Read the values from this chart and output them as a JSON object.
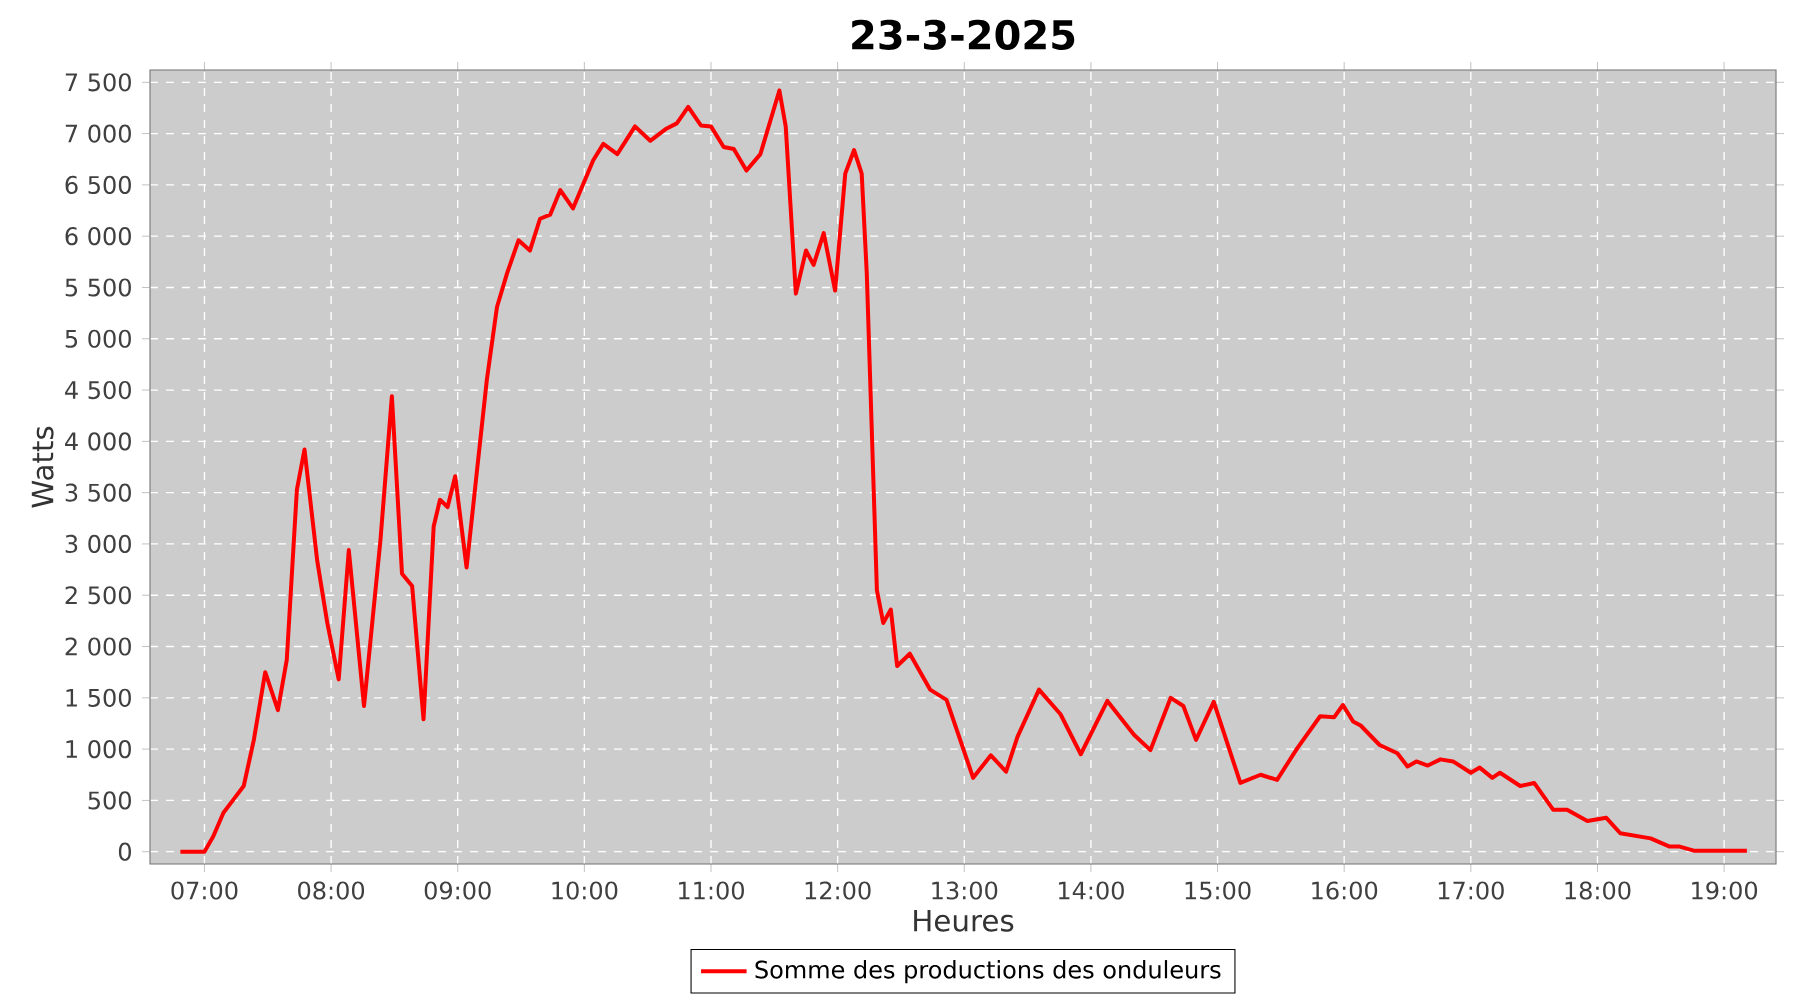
{
  "chart_data": {
    "type": "line",
    "title": "23-3-2025",
    "xlabel": "Heures",
    "ylabel": "Watts",
    "x": [
      6.81,
      7.0,
      7.07,
      7.15,
      7.23,
      7.31,
      7.39,
      7.48,
      7.58,
      7.65,
      7.73,
      7.79,
      7.89,
      7.97,
      8.06,
      8.14,
      8.26,
      8.39,
      8.48,
      8.56,
      8.64,
      8.73,
      8.81,
      8.86,
      8.92,
      8.98,
      9.07,
      9.15,
      9.23,
      9.31,
      9.39,
      9.48,
      9.57,
      9.65,
      9.73,
      9.81,
      9.91,
      10.07,
      10.15,
      10.26,
      10.4,
      10.52,
      10.65,
      10.73,
      10.82,
      10.92,
      11.0,
      11.1,
      11.18,
      11.28,
      11.39,
      11.54,
      11.59,
      11.67,
      11.75,
      11.81,
      11.89,
      11.98,
      12.06,
      12.13,
      12.19,
      12.23,
      12.31,
      12.36,
      12.42,
      12.47,
      12.57,
      12.73,
      12.86,
      13.07,
      13.21,
      13.33,
      13.42,
      13.59,
      13.76,
      13.92,
      14.13,
      14.34,
      14.47,
      14.63,
      14.73,
      14.83,
      14.97,
      15.18,
      15.34,
      15.47,
      15.63,
      15.81,
      15.92,
      15.99,
      16.07,
      16.13,
      16.28,
      16.42,
      16.5,
      16.57,
      16.66,
      16.76,
      16.86,
      17.0,
      17.07,
      17.17,
      17.23,
      17.39,
      17.5,
      17.65,
      17.76,
      17.92,
      18.07,
      18.18,
      18.42,
      18.57,
      18.65,
      18.76,
      19.18
    ],
    "series": [
      {
        "name": "Somme des productions des onduleurs",
        "color": "#ff0000",
        "values": [
          0,
          0,
          150,
          380,
          510,
          640,
          1090,
          1750,
          1380,
          1870,
          3530,
          3920,
          2840,
          2230,
          1680,
          2940,
          1420,
          3040,
          4440,
          2710,
          2590,
          1290,
          3170,
          3430,
          3360,
          3660,
          2770,
          3690,
          4600,
          5310,
          5640,
          5960,
          5860,
          6170,
          6210,
          6450,
          6270,
          6740,
          6900,
          6800,
          7070,
          6930,
          7050,
          7100,
          7260,
          7080,
          7070,
          6870,
          6850,
          6640,
          6800,
          7420,
          7070,
          5440,
          5860,
          5720,
          6030,
          5470,
          6610,
          6840,
          6610,
          5640,
          2550,
          2230,
          2360,
          1810,
          1930,
          1580,
          1480,
          720,
          940,
          780,
          1120,
          1580,
          1340,
          950,
          1470,
          1140,
          990,
          1500,
          1420,
          1090,
          1460,
          670,
          750,
          700,
          1010,
          1320,
          1310,
          1430,
          1270,
          1230,
          1040,
          960,
          830,
          880,
          840,
          900,
          880,
          770,
          820,
          720,
          770,
          640,
          670,
          410,
          410,
          300,
          330,
          180,
          130,
          50,
          50,
          10,
          10
        ]
      }
    ],
    "xlim": [
      6.57,
      19.41
    ],
    "ylim": [
      -120,
      7620
    ],
    "xticks": [
      {
        "value": 7,
        "label": "07:00"
      },
      {
        "value": 8,
        "label": "08:00"
      },
      {
        "value": 9,
        "label": "09:00"
      },
      {
        "value": 10,
        "label": "10:00"
      },
      {
        "value": 11,
        "label": "11:00"
      },
      {
        "value": 12,
        "label": "12:00"
      },
      {
        "value": 13,
        "label": "13:00"
      },
      {
        "value": 14,
        "label": "14:00"
      },
      {
        "value": 15,
        "label": "15:00"
      },
      {
        "value": 16,
        "label": "16:00"
      },
      {
        "value": 17,
        "label": "17:00"
      },
      {
        "value": 18,
        "label": "18:00"
      },
      {
        "value": 19,
        "label": "19:00"
      }
    ],
    "yticks": [
      0,
      500,
      {
        "value": 1000,
        "label": "1 000"
      },
      {
        "value": 1500,
        "label": "1 500"
      },
      {
        "value": 2000,
        "label": "2 000"
      },
      {
        "value": 2500,
        "label": "2 500"
      },
      {
        "value": 3000,
        "label": "3 000"
      },
      {
        "value": 3500,
        "label": "3 500"
      },
      {
        "value": 4000,
        "label": "4 000"
      },
      {
        "value": 4500,
        "label": "4 500"
      },
      {
        "value": 5000,
        "label": "5 000"
      },
      {
        "value": 5500,
        "label": "5 500"
      },
      {
        "value": 6000,
        "label": "6 000"
      },
      {
        "value": 6500,
        "label": "6 500"
      },
      {
        "value": 7000,
        "label": "7 000"
      },
      {
        "value": 7500,
        "label": "7 500"
      }
    ],
    "grid": true,
    "legend": "bottom",
    "line_style": "solid"
  }
}
